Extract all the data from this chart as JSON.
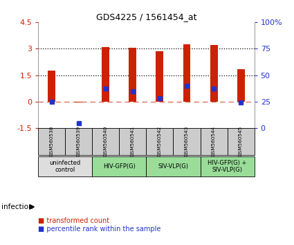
{
  "title": "GDS4225 / 1561454_at",
  "samples": [
    "GSM560538",
    "GSM560539",
    "GSM560540",
    "GSM560541",
    "GSM560542",
    "GSM560543",
    "GSM560544",
    "GSM560545"
  ],
  "red_values": [
    1.75,
    -0.05,
    3.1,
    3.05,
    2.85,
    3.25,
    3.2,
    1.85
  ],
  "blue_percentile": [
    25,
    5,
    37,
    35,
    28,
    40,
    37,
    24
  ],
  "ylim_left": [
    -1.5,
    4.5
  ],
  "ylim_right": [
    0,
    100
  ],
  "yticks_left": [
    -1.5,
    0.0,
    1.5,
    3.0,
    4.5
  ],
  "yticks_right": [
    0,
    25,
    50,
    75,
    100
  ],
  "hlines_dotted": [
    1.5,
    3.0
  ],
  "hline_dashed": 0.0,
  "red_color": "#CC2200",
  "blue_color": "#2233CC",
  "groups": [
    {
      "label": "uninfected\ncontrol",
      "start": 0,
      "end": 2,
      "color": "#dddddd"
    },
    {
      "label": "HIV-GFP(G)",
      "start": 2,
      "end": 4,
      "color": "#99dd99"
    },
    {
      "label": "SIV-VLP(G)",
      "start": 4,
      "end": 6,
      "color": "#99dd99"
    },
    {
      "label": "HIV-GFP(G) +\nSIV-VLP(G)",
      "start": 6,
      "end": 8,
      "color": "#99dd99"
    }
  ],
  "infection_label": "infection",
  "legend_red": "transformed count",
  "legend_blue": "percentile rank within the sample",
  "sample_bg_color": "#cccccc",
  "bar_width": 0.28,
  "blue_marker_size": 4.5
}
